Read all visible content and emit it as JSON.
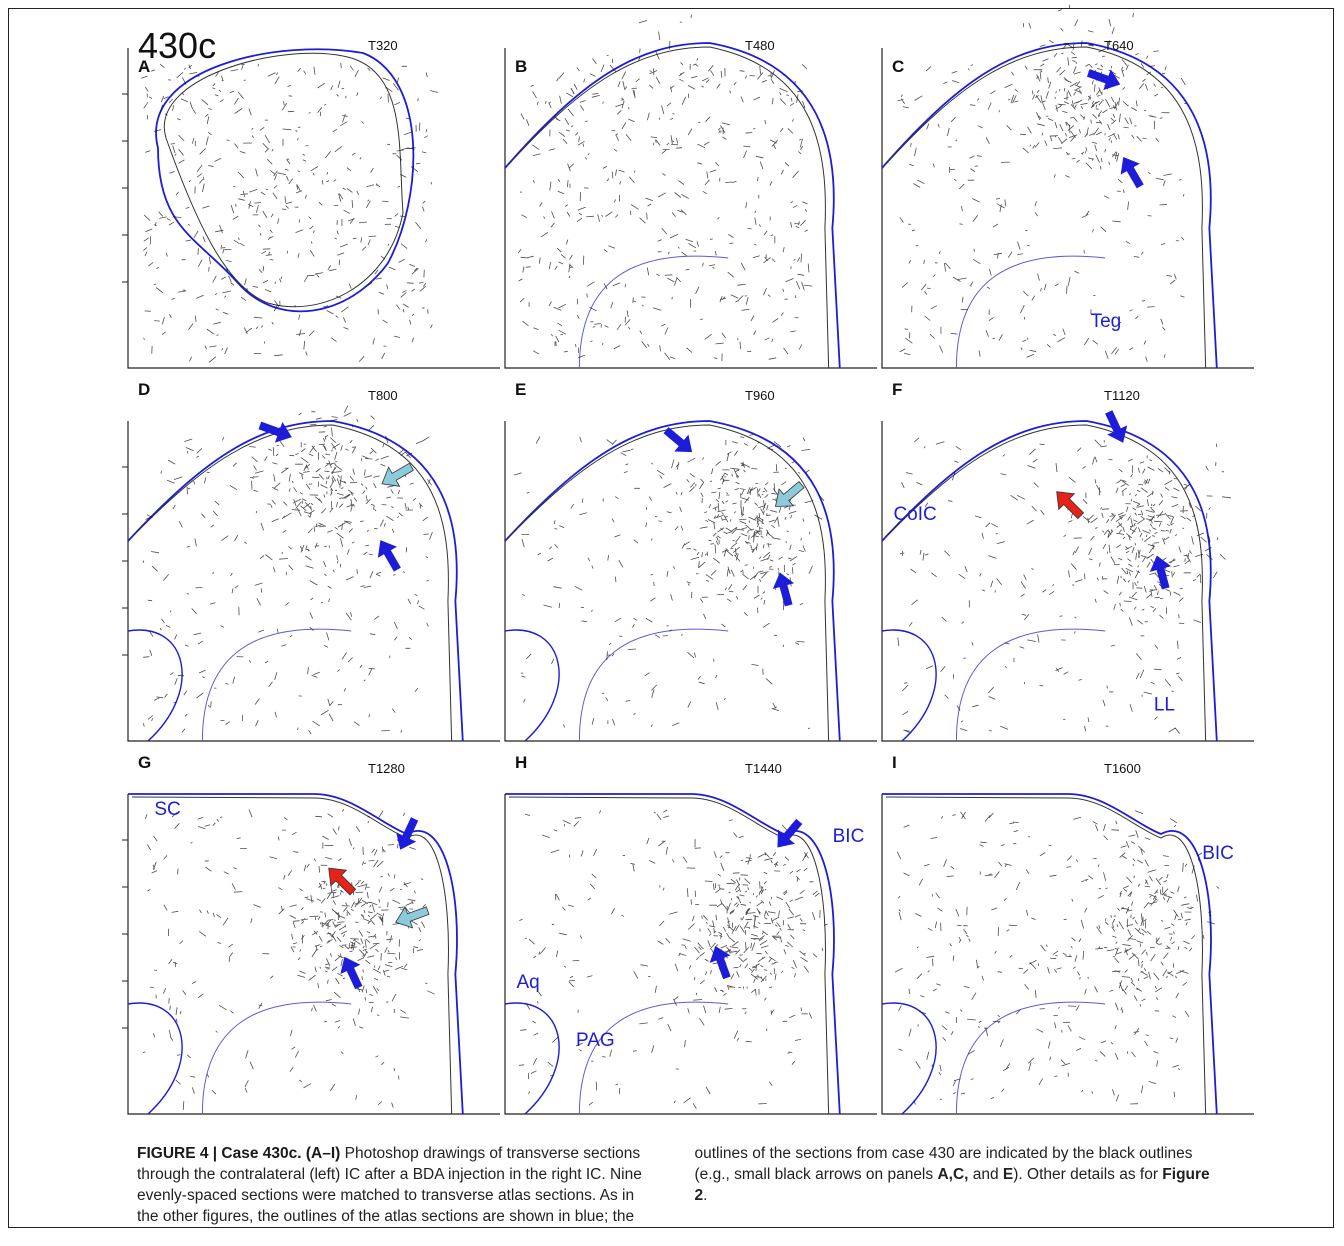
{
  "figure": {
    "case_label": "430c",
    "panels": [
      {
        "letter": "A",
        "section": "T320",
        "regions": []
      },
      {
        "letter": "B",
        "section": "T480",
        "regions": []
      },
      {
        "letter": "C",
        "section": "T640",
        "regions": [
          "Teg"
        ]
      },
      {
        "letter": "D",
        "section": "T800",
        "regions": []
      },
      {
        "letter": "E",
        "section": "T960",
        "regions": []
      },
      {
        "letter": "F",
        "section": "T1120",
        "regions": [
          "CoIC",
          "LL"
        ]
      },
      {
        "letter": "G",
        "section": "T1280",
        "regions": [
          "SC"
        ]
      },
      {
        "letter": "H",
        "section": "T1440",
        "regions": [
          "BIC",
          "Aq",
          "PAG"
        ]
      },
      {
        "letter": "I",
        "section": "T1600",
        "regions": [
          "BIC"
        ]
      }
    ]
  },
  "caption": {
    "segments": [
      {
        "text": "FIGURE 4 | Case 430c. (A–I)",
        "bold": true
      },
      {
        "text": " Photoshop drawings of transverse sections through the contralateral (left) IC after a BDA injection in the right IC. Nine evenly-spaced sections were matched to transverse atlas sections. As in the other figures, the outlines of the atlas sections are shown in blue; the outlines of the sections from case 430 are indicated by the black outlines (e.g., small black arrows on panels ",
        "bold": false
      },
      {
        "text": "A,C,",
        "bold": true
      },
      {
        "text": " and ",
        "bold": false
      },
      {
        "text": "E",
        "bold": true
      },
      {
        "text": "). Other details as for ",
        "bold": false
      },
      {
        "text": "Figure 2",
        "bold": true
      },
      {
        "text": ".",
        "bold": false
      }
    ]
  }
}
